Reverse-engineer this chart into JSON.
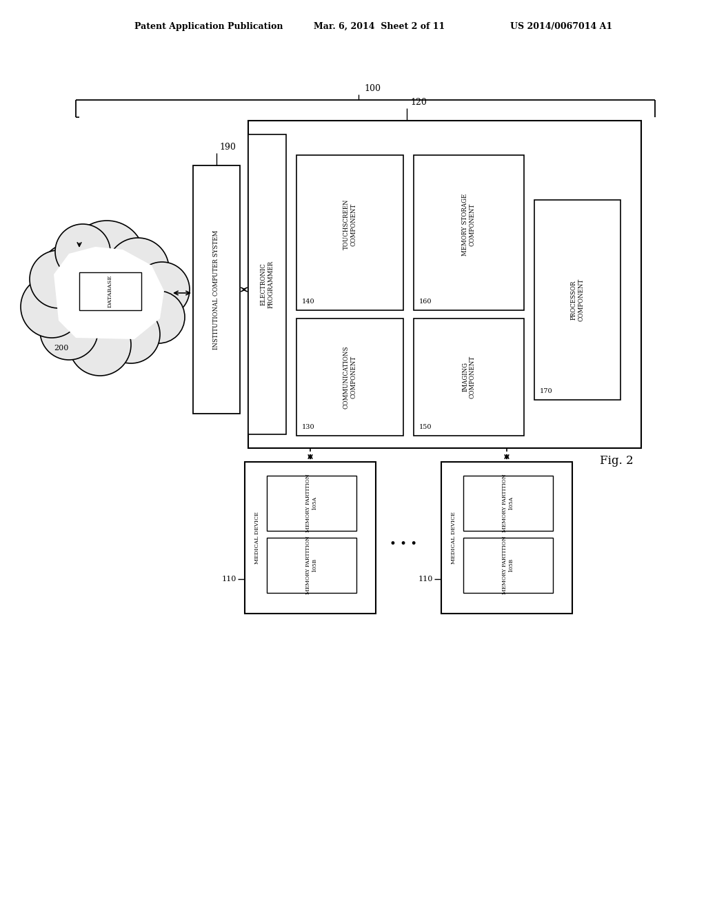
{
  "bg_color": "#ffffff",
  "header_left": "Patent Application Publication",
  "header_mid": "Mar. 6, 2014  Sheet 2 of 11",
  "header_right": "US 2014/0067014 A1",
  "fig_label": "Fig. 2",
  "label_100": "100",
  "label_120": "120",
  "label_190": "190",
  "label_200": "200",
  "label_110a": "110",
  "label_110b": "110",
  "label_130": "130",
  "label_140": "140",
  "label_150": "150",
  "label_160": "160",
  "label_170": "170",
  "text_inst_comp": "INSTITUTIONAL COMPUTER SYSTEM",
  "text_elec_prog": "ELECTRONIC\nPROGRAMMER",
  "text_touch": "TOUCHSCREEN\nCOMPONENT",
  "text_mem_stor": "MEMORY STORAGE\nCOMPONENT",
  "text_comm": "COMMUNICATIONS\nCOMPONENT",
  "text_imaging": "IMAGING\nCOMPONENT",
  "text_proc": "PROCESSOR\nCOMPONENT",
  "text_database": "DATABASE",
  "text_med_dev_a": "MEDICAL DEVICE",
  "text_mem_part_105a_a": "MEMORY PARTITION\n105A",
  "text_mem_part_105b_a": "MEMORY PARTITION\n105B",
  "text_med_dev_b": "MEDICAL DEVICE",
  "text_mem_part_105a_b": "MEMORY PARTITION\n105A",
  "text_mem_part_105b_b": "MEMORY PARTITION\n105B"
}
